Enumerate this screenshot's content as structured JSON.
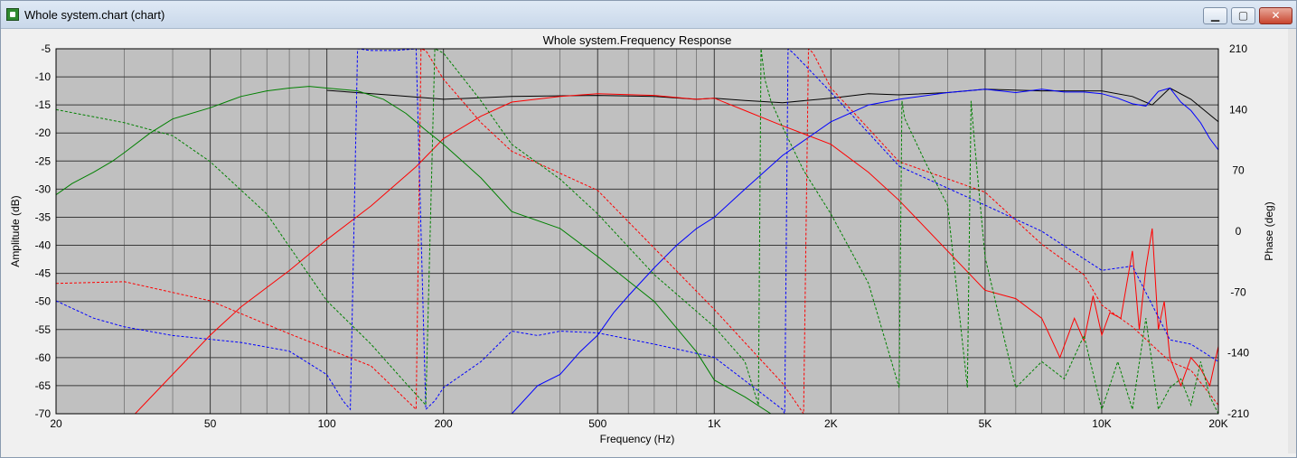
{
  "window": {
    "title": "Whole system.chart (chart)",
    "min_label": "▁",
    "max_label": "▢",
    "close_label": "✕"
  },
  "colors": {
    "plot_background": "#c0c0c0",
    "grid": "#3a3a3a",
    "black": "#000000",
    "red": "#ff0000",
    "blue": "#0000ff",
    "green": "#008000"
  },
  "chart_data": {
    "type": "line",
    "title": "Whole system.Frequency Response",
    "xlabel": "Frequency (Hz)",
    "ylabel": "Amplitude (dB)",
    "y2label": "Phase (deg)",
    "xscale": "log",
    "xlim": [
      20,
      20000
    ],
    "ylim": [
      -70,
      -5
    ],
    "y2lim": [
      -210,
      210
    ],
    "grid": true,
    "x_ticks": [
      {
        "v": 20,
        "label": "20"
      },
      {
        "v": 50,
        "label": "50"
      },
      {
        "v": 100,
        "label": "100"
      },
      {
        "v": 200,
        "label": "200"
      },
      {
        "v": 500,
        "label": "500"
      },
      {
        "v": 1000,
        "label": "1K"
      },
      {
        "v": 2000,
        "label": "2K"
      },
      {
        "v": 5000,
        "label": "5K"
      },
      {
        "v": 10000,
        "label": "10K"
      },
      {
        "v": 20000,
        "label": "20K"
      }
    ],
    "x_minor": [
      30,
      40,
      60,
      70,
      80,
      90,
      300,
      400,
      600,
      700,
      800,
      900,
      3000,
      4000,
      6000,
      7000,
      8000,
      9000
    ],
    "y_ticks": [
      "-5",
      "-10",
      "-15",
      "-20",
      "-25",
      "-30",
      "-35",
      "-40",
      "-45",
      "-50",
      "-55",
      "-60",
      "-65",
      "-70"
    ],
    "y_tick_values": [
      -5,
      -10,
      -15,
      -20,
      -25,
      -30,
      -35,
      -40,
      -45,
      -50,
      -55,
      -60,
      -65,
      -70
    ],
    "y2_ticks": [
      {
        "v": 210,
        "label": "210"
      },
      {
        "v": 140,
        "label": "140"
      },
      {
        "v": 70,
        "label": "70"
      },
      {
        "v": 0,
        "label": "0"
      },
      {
        "v": -70,
        "label": "-70"
      },
      {
        "v": -140,
        "label": "-140"
      },
      {
        "v": -210,
        "label": "-210"
      }
    ],
    "series": [
      {
        "color": "#000000",
        "style": "solid",
        "axis": "left",
        "x": [
          100,
          150,
          200,
          300,
          500,
          700,
          900,
          1000,
          1200,
          1500,
          2000,
          2500,
          3000,
          4000,
          5000,
          7000,
          10000,
          12000,
          13500,
          15000,
          17000,
          20000
        ],
        "y": [
          -12.4,
          -13.3,
          -14.0,
          -13.5,
          -13.3,
          -13.5,
          -14.0,
          -13.8,
          -14.2,
          -14.6,
          -13.8,
          -13.0,
          -13.2,
          -12.8,
          -12.2,
          -12.5,
          -12.5,
          -13.5,
          -15.0,
          -12.0,
          -14.0,
          -18.0
        ]
      },
      {
        "color": "#ff0000",
        "style": "solid",
        "axis": "left",
        "x": [
          32,
          40,
          50,
          60,
          80,
          100,
          130,
          170,
          200,
          250,
          300,
          400,
          500,
          700,
          900,
          1000,
          1200,
          1500,
          2000,
          2500,
          3000,
          4000,
          5000,
          6000,
          7000,
          7800,
          8500,
          9000,
          9500,
          10000,
          10500,
          11200,
          12000,
          12500,
          13000,
          13500,
          14000,
          14500,
          15000,
          16000,
          17000,
          18000,
          19000,
          20000
        ],
        "y": [
          -70,
          -63,
          -56,
          -51,
          -44.5,
          -39,
          -33,
          -26,
          -21,
          -17,
          -14.5,
          -13.5,
          -13.0,
          -13.3,
          -14,
          -13.8,
          -16,
          -18.7,
          -22,
          -27,
          -32,
          -41,
          -48,
          -49.5,
          -53,
          -60,
          -53,
          -57,
          -49,
          -56,
          -52,
          -53,
          -41,
          -55,
          -44,
          -37,
          -55,
          -50,
          -60,
          -65,
          -60,
          -62,
          -65,
          -58
        ]
      },
      {
        "color": "#0000ff",
        "style": "solid",
        "axis": "left",
        "x": [
          300,
          350,
          400,
          450,
          500,
          550,
          600,
          700,
          800,
          900,
          1000,
          1200,
          1500,
          2000,
          2500,
          3000,
          4000,
          5000,
          6000,
          7000,
          8000,
          9000,
          10000,
          11000,
          12000,
          13000,
          14000,
          15000,
          16000,
          17000,
          18000,
          19000,
          20000
        ],
        "y": [
          -70,
          -65,
          -63,
          -59,
          -56,
          -52,
          -49,
          -44,
          -40,
          -37,
          -35,
          -30,
          -24,
          -18,
          -15,
          -14,
          -12.8,
          -12.2,
          -12.8,
          -12.2,
          -12.7,
          -12.7,
          -13.0,
          -13.8,
          -14.8,
          -15.2,
          -12.6,
          -12.0,
          -14.5,
          -16.0,
          -18.2,
          -21.0,
          -23.0
        ]
      },
      {
        "color": "#008000",
        "style": "solid",
        "axis": "left",
        "x": [
          20,
          22,
          25,
          28,
          30,
          35,
          40,
          50,
          60,
          70,
          80,
          90,
          100,
          120,
          140,
          160,
          180,
          200,
          250,
          300,
          400,
          500,
          700,
          900,
          1000,
          1200,
          1400,
          1500
        ],
        "y": [
          -31,
          -29,
          -27,
          -25,
          -23.5,
          -20,
          -17.5,
          -15.5,
          -13.5,
          -12.5,
          -12,
          -11.7,
          -12.0,
          -12.5,
          -14,
          -16.5,
          -19.5,
          -22,
          -28,
          -34,
          -37,
          -42,
          -50,
          -59,
          -64,
          -67,
          -70,
          -71
        ]
      },
      {
        "color": "#ff0000",
        "style": "dashed",
        "axis": "right",
        "x": [
          20,
          30,
          50,
          80,
          100,
          130,
          170,
          175,
          180,
          200,
          250,
          300,
          500,
          1000,
          1500,
          1700,
          1750,
          1800,
          2000,
          3000,
          5000,
          7000,
          9000,
          10000,
          12000,
          15000,
          17000,
          20000
        ],
        "y": [
          -60,
          -58,
          -80,
          -118,
          -135,
          -155,
          -205,
          210,
          208,
          175,
          125,
          92,
          47,
          -90,
          -175,
          -210,
          210,
          205,
          165,
          80,
          45,
          -15,
          -50,
          -85,
          -110,
          -150,
          -160,
          -200
        ]
      },
      {
        "color": "#0000ff",
        "style": "dashed",
        "axis": "right",
        "x": [
          20,
          25,
          30,
          40,
          60,
          80,
          100,
          110,
          115,
          120,
          130,
          150,
          170,
          180,
          190,
          200,
          250,
          300,
          350,
          400,
          500,
          700,
          1000,
          1500,
          1520,
          1550,
          1600,
          2000,
          3000,
          5000,
          7000,
          10000,
          12000,
          15000,
          17000,
          20000
        ],
        "y": [
          -80,
          -100,
          -110,
          -120,
          -128,
          -138,
          -165,
          -195,
          -205,
          210,
          208,
          208,
          210,
          -205,
          -195,
          -180,
          -150,
          -115,
          -120,
          -115,
          -117,
          -130,
          -145,
          -205,
          -210,
          210,
          205,
          160,
          75,
          30,
          0,
          -45,
          -40,
          -125,
          -130,
          -150
        ]
      },
      {
        "color": "#008000",
        "style": "dashed",
        "axis": "right",
        "x": [
          20,
          30,
          40,
          50,
          70,
          100,
          130,
          160,
          180,
          190,
          200,
          250,
          300,
          400,
          500,
          700,
          1000,
          1200,
          1300,
          1320,
          1350,
          1400,
          1500,
          1700,
          2000,
          2500,
          3000,
          3050,
          3100,
          3500,
          4000,
          4500,
          4600,
          4700,
          5000,
          6000,
          7000,
          8000,
          9000,
          10000,
          11000,
          12000,
          13000,
          14000,
          15000,
          16000,
          17000,
          18000,
          19000,
          20000
        ],
        "y": [
          140,
          125,
          110,
          80,
          20,
          -80,
          -130,
          -175,
          -200,
          210,
          205,
          150,
          100,
          60,
          20,
          -50,
          -110,
          -150,
          -200,
          210,
          175,
          150,
          120,
          70,
          20,
          -60,
          -180,
          150,
          130,
          80,
          30,
          -180,
          150,
          100,
          -30,
          -180,
          -150,
          -170,
          -120,
          -205,
          -150,
          -205,
          -100,
          -205,
          -180,
          -170,
          -200,
          -150,
          -190,
          -210
        ]
      }
    ]
  }
}
